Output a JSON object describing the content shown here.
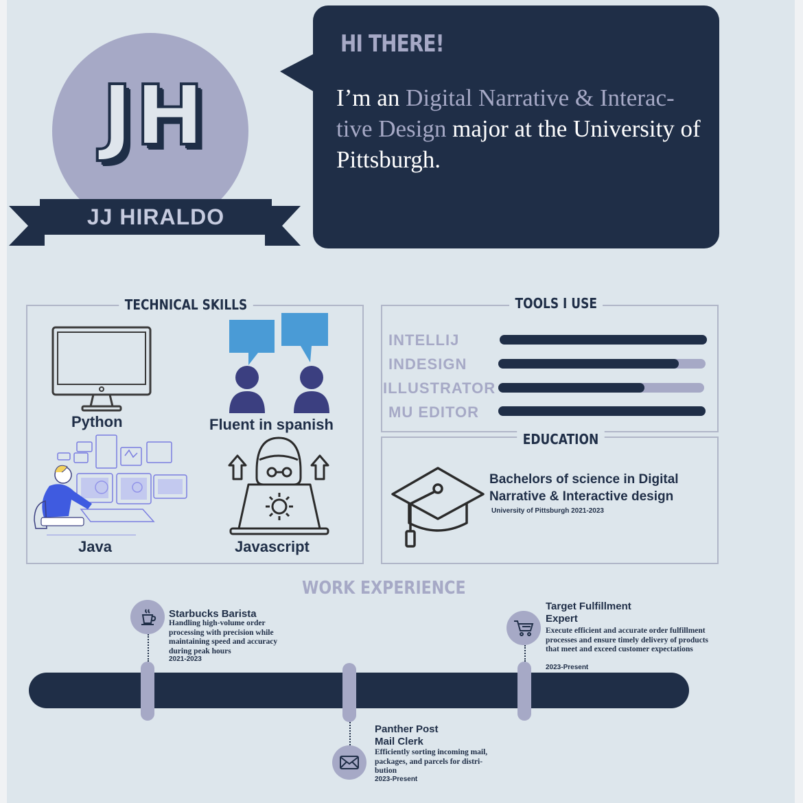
{
  "header": {
    "monogram": "JH",
    "name": "JJ HIRALDO",
    "greeting": "HI THERE!",
    "intro_prefix": "I’m an ",
    "intro_highlight": "Digital Narrative & Interac- tive Design",
    "intro_suffix": " major at the University of Pittsburgh."
  },
  "technical_skills": {
    "title": "TECHNICAL SKILLS",
    "items": [
      {
        "label": "Python",
        "icon": "monitor-icon"
      },
      {
        "label": "Fluent in spanish",
        "icon": "conversation-icon"
      },
      {
        "label": "Java",
        "icon": "developer-illustration"
      },
      {
        "label": "Javascript",
        "icon": "laptop-gear-icon"
      }
    ]
  },
  "tools": {
    "title": "TOOLS I USE",
    "items": [
      {
        "label": "INTELLIJ",
        "level": 1.0
      },
      {
        "label": "INDESIGN",
        "level": 0.87
      },
      {
        "label": "ILLUSTRATOR",
        "level": 0.71
      },
      {
        "label": "MU EDITOR",
        "level": 1.0
      }
    ]
  },
  "education": {
    "title": "EDUCATION",
    "degree": "Bachelors of science in Digital Narrative & Interactive design",
    "school": "University of Pittsburgh 2021-2023",
    "icon": "graduation-cap-icon"
  },
  "work": {
    "title": "WORK EXPERIENCE",
    "jobs": [
      {
        "title": "Starbucks Barista",
        "desc": "Handling high-volume order processing with precision while maintaining speed and accuracy during peak hours",
        "date": "2021-2023",
        "icon": "coffee-icon"
      },
      {
        "title": "Panther Post Mail Clerk",
        "desc": "Efficiently sorting incoming mail, packages, and parcels for distri- bution",
        "date": "2023-Present",
        "icon": "envelope-icon"
      },
      {
        "title": "Target Fulfillment Expert",
        "desc": "Execute efficient and accurate order fulfillment processes and ensure timely delivery of products that meet and exceed customer expectations",
        "date": "2023-Present",
        "icon": "shopping-cart-icon"
      }
    ]
  },
  "colors": {
    "navy": "#1f2e47",
    "lavender": "#a6a9c6",
    "background": "#dde6ec",
    "skill_blue": "#4a9bd6",
    "skill_purple": "#3b3f80"
  }
}
